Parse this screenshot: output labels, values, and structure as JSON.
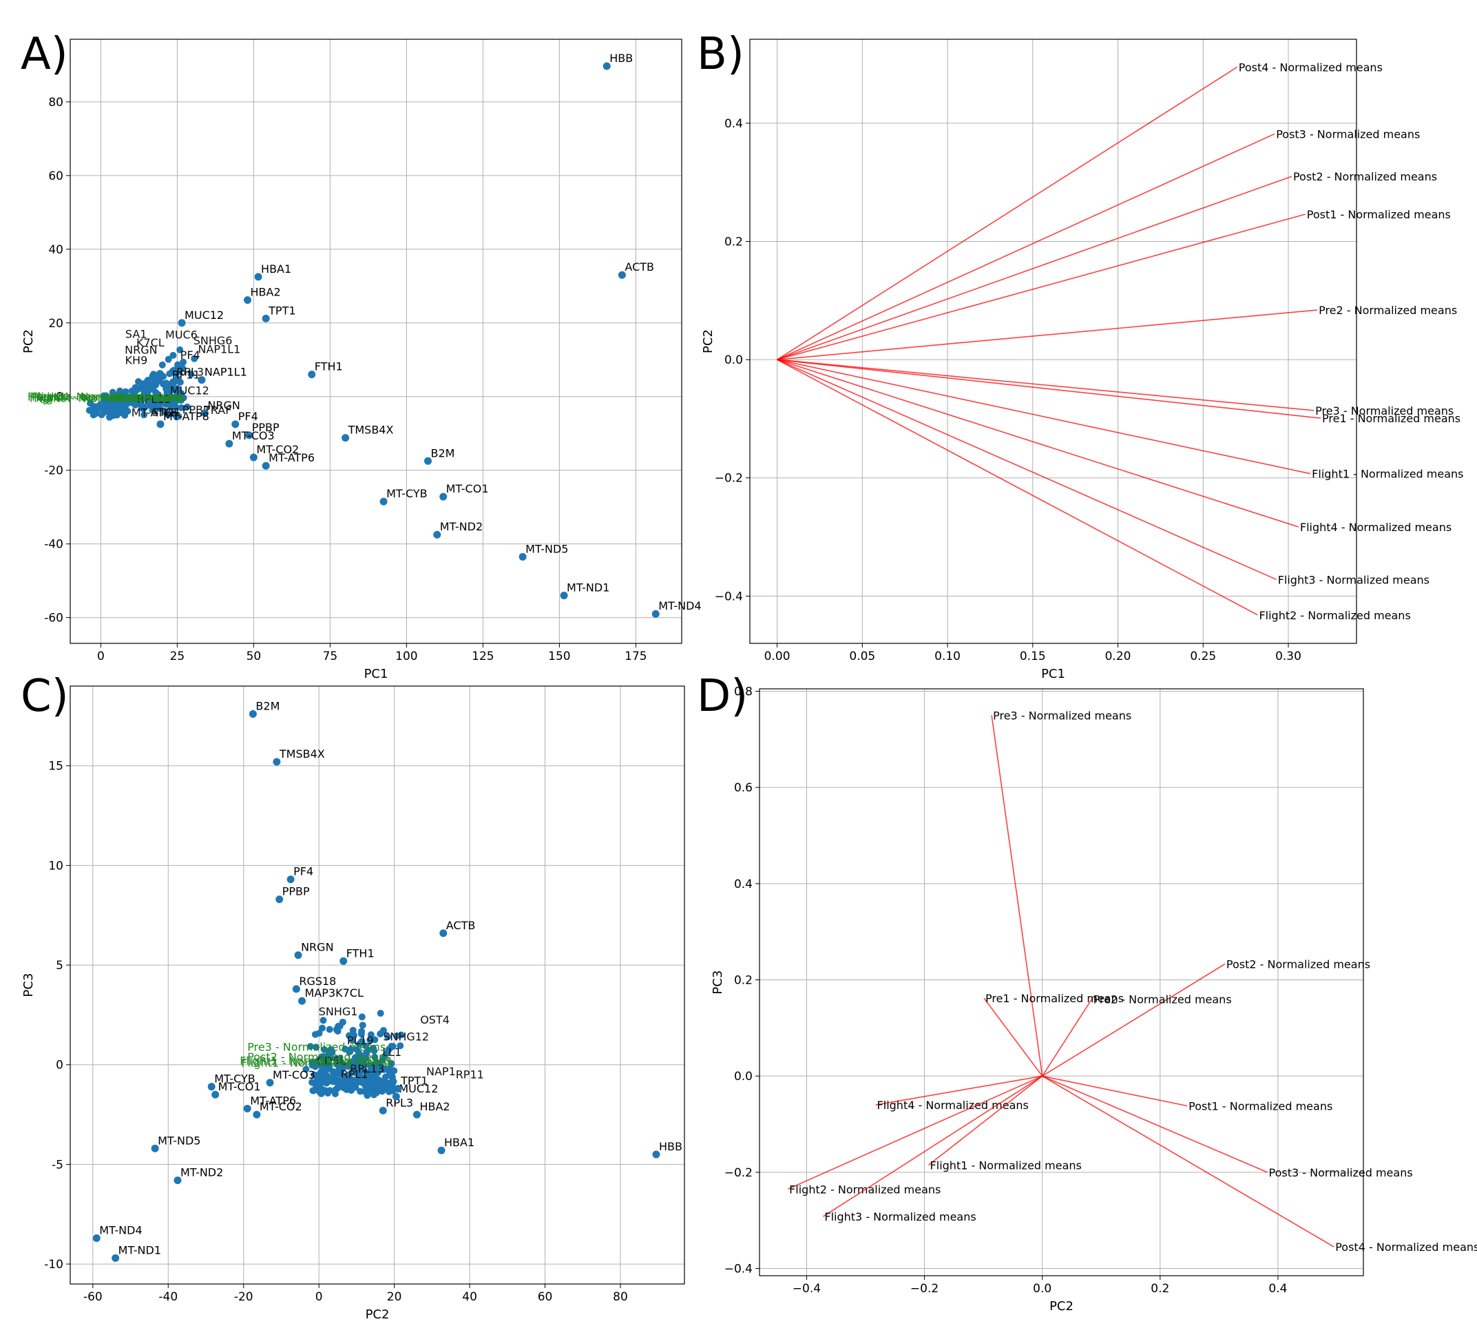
{
  "panels": {
    "A": {
      "letter": "A)"
    },
    "B": {
      "letter": "B)"
    },
    "C": {
      "letter": "C)"
    },
    "D": {
      "letter": "D)"
    }
  },
  "chart_data": [
    {
      "id": "A",
      "type": "scatter",
      "title": "",
      "xlabel": "PC1",
      "ylabel": "PC2",
      "xlim": [
        -10,
        190
      ],
      "ylim": [
        -67,
        97
      ],
      "xticks": [
        0,
        25,
        50,
        75,
        100,
        125,
        150,
        175
      ],
      "yticks": [
        -60,
        -40,
        -20,
        0,
        20,
        40,
        60,
        80
      ],
      "grid": true,
      "marker_color": "#1f77b4",
      "points": [
        {
          "x": 165.5,
          "y": 89.7,
          "label": "HBB"
        },
        {
          "x": 170.5,
          "y": 33.0,
          "label": "ACTB"
        },
        {
          "x": 51.5,
          "y": 32.5,
          "label": "HBA1"
        },
        {
          "x": 48.0,
          "y": 26.2,
          "label": "HBA2"
        },
        {
          "x": 54.0,
          "y": 21.2,
          "label": "TPT1"
        },
        {
          "x": 69.0,
          "y": 6.0,
          "label": "FTH1"
        },
        {
          "x": 80.0,
          "y": -11.2,
          "label": "TMSB4X"
        },
        {
          "x": 107.0,
          "y": -17.5,
          "label": "B2M"
        },
        {
          "x": 112.0,
          "y": -27.2,
          "label": "MT-CO1"
        },
        {
          "x": 92.5,
          "y": -28.5,
          "label": "MT-CYB"
        },
        {
          "x": 110.0,
          "y": -37.5,
          "label": "MT-ND2"
        },
        {
          "x": 138.0,
          "y": -43.5,
          "label": "MT-ND5"
        },
        {
          "x": 151.5,
          "y": -54.0,
          "label": "MT-ND1"
        },
        {
          "x": 181.5,
          "y": -59.0,
          "label": "MT-ND4"
        },
        {
          "x": 44.0,
          "y": -7.5,
          "label": "PF4"
        },
        {
          "x": 48.5,
          "y": -10.5,
          "label": "PPBP"
        },
        {
          "x": 42.0,
          "y": -12.8,
          "label": "MT-CO3"
        },
        {
          "x": 50.0,
          "y": -16.5,
          "label": "MT-CO2"
        },
        {
          "x": 54.0,
          "y": -18.8,
          "label": "MT-ATP6"
        },
        {
          "x": 26.5,
          "y": 20.0,
          "label": "MUC12"
        },
        {
          "x": 33.0,
          "y": 4.5,
          "label": "NAP1L1"
        },
        {
          "x": 34.0,
          "y": -4.5,
          "label": "NRGN"
        },
        {
          "x": 19.5,
          "y": -7.5,
          "label": "MT-ATP8"
        }
      ],
      "cluster_labels": [
        "MUC12",
        "MUC6",
        "RPL3",
        "SNHG6",
        "SA1",
        "RPL13",
        "TRAF",
        "STG1",
        "KH9",
        "NAP1L1",
        "PPBP",
        "RP11",
        "K7CL",
        "NRGN",
        "MT-ATP8",
        "PF4"
      ],
      "overlay_label": "Flight4 - Normalized means"
    },
    {
      "id": "B",
      "type": "line",
      "title": "",
      "xlabel": "PC1",
      "ylabel": "PC2",
      "xlim": [
        -0.016,
        0.34
      ],
      "ylim": [
        -0.48,
        0.542
      ],
      "xticks": [
        "0.00",
        "0.05",
        "0.10",
        "0.15",
        "0.20",
        "0.25",
        "0.30"
      ],
      "yticks": [
        "−0.4",
        "−0.2",
        "0.0",
        "0.2",
        "0.4"
      ],
      "grid": true,
      "line_color": "#ff0000",
      "vectors": [
        {
          "name": "Post4 - Normalized means",
          "x": 0.27,
          "y": 0.495
        },
        {
          "name": "Post3 - Normalized means",
          "x": 0.292,
          "y": 0.382
        },
        {
          "name": "Post2 - Normalized means",
          "x": 0.302,
          "y": 0.31
        },
        {
          "name": "Post1 - Normalized means",
          "x": 0.31,
          "y": 0.246
        },
        {
          "name": "Pre2 - Normalized means",
          "x": 0.317,
          "y": 0.084
        },
        {
          "name": "Pre3 - Normalized means",
          "x": 0.315,
          "y": -0.086
        },
        {
          "name": "Pre1 - Normalized means",
          "x": 0.319,
          "y": -0.099
        },
        {
          "name": "Flight1 - Normalized means",
          "x": 0.313,
          "y": -0.193
        },
        {
          "name": "Flight4 - Normalized means",
          "x": 0.306,
          "y": -0.283
        },
        {
          "name": "Flight3 - Normalized means",
          "x": 0.293,
          "y": -0.372
        },
        {
          "name": "Flight2 - Normalized means",
          "x": 0.282,
          "y": -0.432
        }
      ]
    },
    {
      "id": "C",
      "type": "scatter",
      "title": "",
      "xlabel": "PC2",
      "ylabel": "PC3",
      "xlim": [
        -66,
        97
      ],
      "ylim": [
        -11.0,
        19.0
      ],
      "xticks": [
        -60,
        -40,
        -20,
        0,
        20,
        40,
        60,
        80
      ],
      "yticks": [
        -10,
        -5,
        0,
        5,
        10,
        15
      ],
      "grid": true,
      "marker_color": "#1f77b4",
      "points": [
        {
          "x": -17.5,
          "y": 17.6,
          "label": "B2M"
        },
        {
          "x": -11.2,
          "y": 15.2,
          "label": "TMSB4X"
        },
        {
          "x": -7.5,
          "y": 9.3,
          "label": "PF4"
        },
        {
          "x": -10.5,
          "y": 8.3,
          "label": "PPBP"
        },
        {
          "x": 33.0,
          "y": 6.6,
          "label": "ACTB"
        },
        {
          "x": -5.5,
          "y": 5.5,
          "label": "NRGN"
        },
        {
          "x": 6.5,
          "y": 5.2,
          "label": "FTH1"
        },
        {
          "x": -6.0,
          "y": 3.8,
          "label": "RGS18"
        },
        {
          "x": -4.5,
          "y": 3.2,
          "label": "MAP3K7CL"
        },
        {
          "x": 89.5,
          "y": -4.5,
          "label": "HBB"
        },
        {
          "x": 32.5,
          "y": -4.3,
          "label": "HBA1"
        },
        {
          "x": 26.0,
          "y": -2.5,
          "label": "HBA2"
        },
        {
          "x": 17.0,
          "y": -2.3,
          "label": "RPL3"
        },
        {
          "x": 20.5,
          "y": -1.6,
          "label": "MUC12"
        },
        {
          "x": 21.0,
          "y": -1.2,
          "label": "TPT1"
        },
        {
          "x": -28.5,
          "y": -1.1,
          "label": "MT-CYB"
        },
        {
          "x": -27.5,
          "y": -1.5,
          "label": "MT-CO1"
        },
        {
          "x": -19.0,
          "y": -2.2,
          "label": "MT-ATP6"
        },
        {
          "x": -16.5,
          "y": -2.5,
          "label": "MT-CO2"
        },
        {
          "x": -13.0,
          "y": -0.9,
          "label": "MT-CO3"
        },
        {
          "x": -43.5,
          "y": -4.2,
          "label": "MT-ND5"
        },
        {
          "x": -37.5,
          "y": -5.8,
          "label": "MT-ND2"
        },
        {
          "x": -59.0,
          "y": -8.7,
          "label": "MT-ND4"
        },
        {
          "x": -54.0,
          "y": -9.7,
          "label": "MT-ND1"
        }
      ],
      "cluster_labels": [
        "SNHG12",
        "SNHG1",
        "CD5L",
        "OST4",
        "RPL13",
        "LL1",
        "RP11",
        "NAP1",
        "PL19",
        "RPL1"
      ],
      "overlay_labels": [
        "Pre3 - Normalized means",
        "Post2 - Normalized means",
        "Flight1 - Normalized means"
      ]
    },
    {
      "id": "D",
      "type": "line",
      "title": "",
      "xlabel": "PC2",
      "ylabel": "PC3",
      "xlim": [
        -0.48,
        0.545
      ],
      "ylim": [
        -0.415,
        0.805
      ],
      "xticks": [
        "−0.4",
        "−0.2",
        "0.0",
        "0.2",
        "0.4"
      ],
      "yticks": [
        "−0.4",
        "−0.2",
        "0.0",
        "0.2",
        "0.4",
        "0.6",
        "0.8"
      ],
      "grid": true,
      "line_color": "#ff0000",
      "vectors": [
        {
          "name": "Pre3 - Normalized means",
          "x": -0.086,
          "y": 0.75
        },
        {
          "name": "Post2 - Normalized means",
          "x": 0.31,
          "y": 0.233
        },
        {
          "name": "Pre1 - Normalized means",
          "x": -0.099,
          "y": 0.162
        },
        {
          "name": "Pre2 - Normalized means",
          "x": 0.084,
          "y": 0.16
        },
        {
          "name": "Post1 - Normalized means",
          "x": 0.246,
          "y": -0.062
        },
        {
          "name": "Flight4 - Normalized means",
          "x": -0.283,
          "y": -0.06
        },
        {
          "name": "Flight1 - Normalized means",
          "x": -0.193,
          "y": -0.185
        },
        {
          "name": "Post3 - Normalized means",
          "x": 0.382,
          "y": -0.2
        },
        {
          "name": "Flight2 - Normalized means",
          "x": -0.432,
          "y": -0.235
        },
        {
          "name": "Flight3 - Normalized means",
          "x": -0.372,
          "y": -0.292
        },
        {
          "name": "Post4 - Normalized means",
          "x": 0.495,
          "y": -0.355
        }
      ]
    }
  ]
}
